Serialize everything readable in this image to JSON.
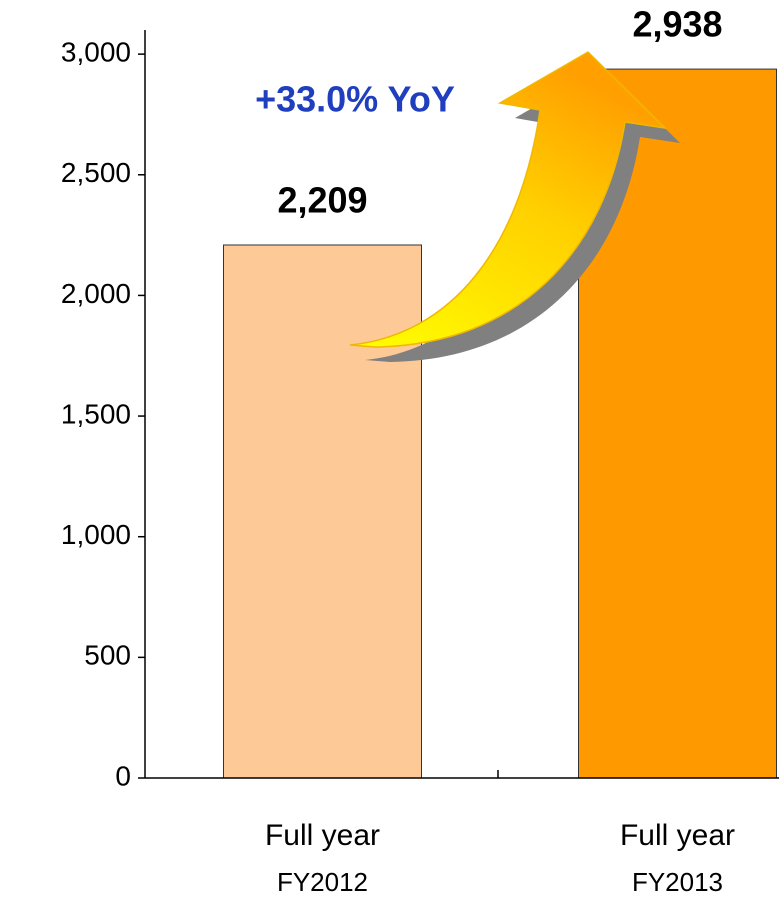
{
  "chart_data": {
    "type": "bar",
    "annotation": "+33.0% YoY",
    "categories": [
      [
        "Full year",
        "FY2012"
      ],
      [
        "Full year",
        "FY2013"
      ]
    ],
    "values": [
      2209,
      2938
    ],
    "value_labels": [
      "2,209",
      "2,938"
    ],
    "colors": [
      "#fdc996",
      "#ff9900"
    ],
    "ylim": [
      0,
      3100
    ],
    "yticks": [
      0,
      {
        "value": 500,
        "label": "500"
      },
      {
        "value": 1000,
        "label": "1,000"
      },
      {
        "value": 1500,
        "label": "1,500"
      },
      {
        "value": 2000,
        "label": "2,000"
      },
      {
        "value": 2500,
        "label": "2,500"
      },
      {
        "value": 3000,
        "label": "3,000"
      }
    ],
    "grid": false
  }
}
